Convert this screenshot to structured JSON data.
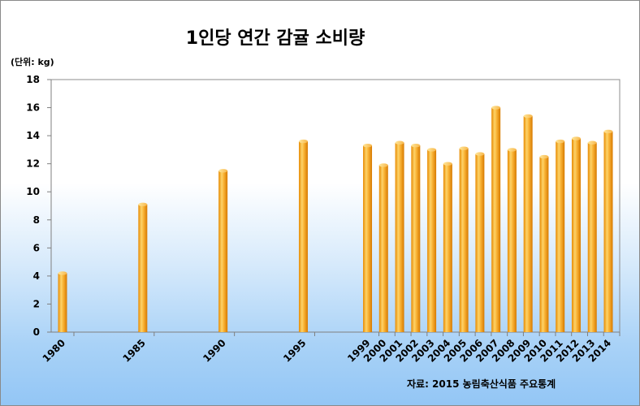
{
  "chart_data": {
    "type": "bar",
    "title": "1인당 연간 감귤 소비량",
    "unit_label": "(단위: kg)",
    "source": "자료: 2015 농림축산식품 주요통계",
    "categories": [
      "1980",
      "1985",
      "1990",
      "1995",
      "1999",
      "2000",
      "2001",
      "2002",
      "2003",
      "2004",
      "2005",
      "2006",
      "2007",
      "2008",
      "2009",
      "2010",
      "2011",
      "2012",
      "2013",
      "2014"
    ],
    "slot_years": [
      1980,
      1981,
      1982,
      1983,
      1984,
      1985,
      1986,
      1987,
      1988,
      1989,
      1990,
      1991,
      1992,
      1993,
      1994,
      1995,
      1996,
      1997,
      1998,
      1999,
      2000,
      2001,
      2002,
      2003,
      2004,
      2005,
      2006,
      2007,
      2008,
      2009,
      2010,
      2011,
      2012,
      2013,
      2014
    ],
    "values": [
      4.2,
      9.1,
      11.5,
      13.6,
      13.3,
      11.9,
      13.5,
      13.3,
      13.0,
      12.0,
      13.1,
      12.7,
      16.0,
      13.0,
      15.4,
      12.5,
      13.6,
      13.8,
      13.5,
      14.3
    ],
    "ylim": [
      0,
      18
    ],
    "yticks": [
      "0",
      "2",
      "4",
      "6",
      "8",
      "10",
      "12",
      "14",
      "16",
      "18"
    ],
    "bar_color": "#f5a623",
    "grid": false
  }
}
